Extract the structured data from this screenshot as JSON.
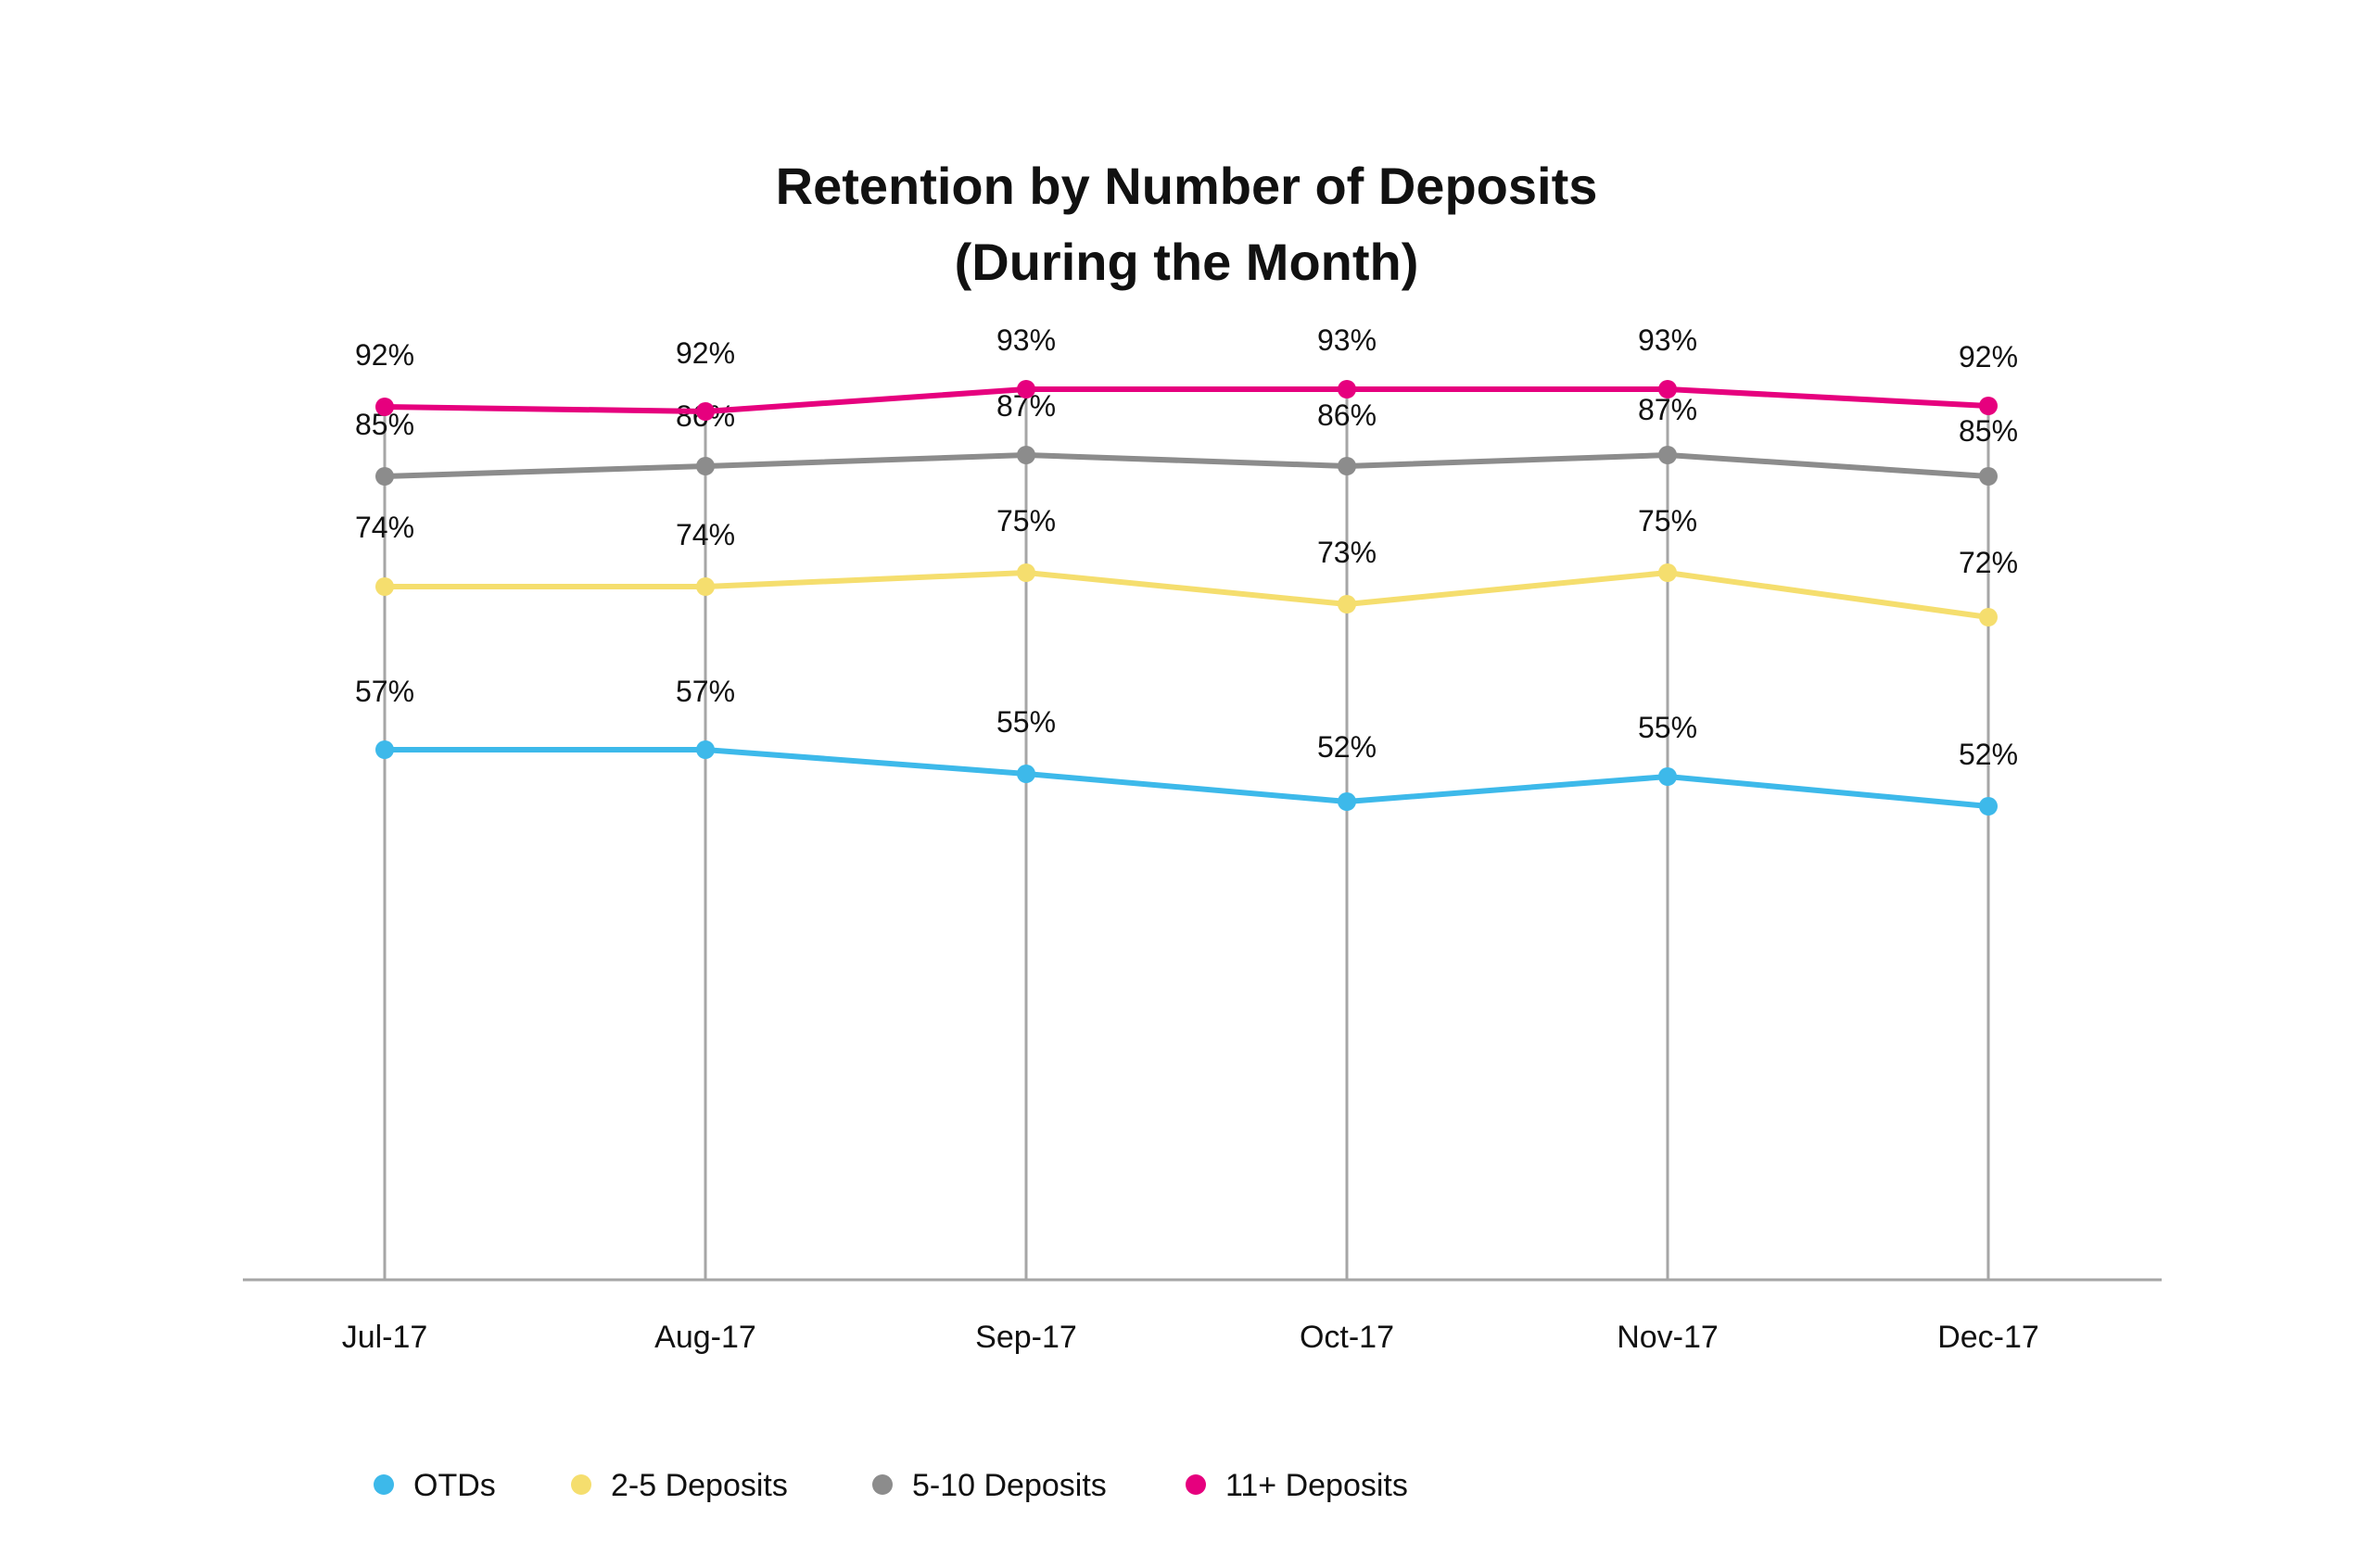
{
  "chart_data": {
    "type": "line",
    "title_line1": "Retention by Number of Deposits",
    "title_line2": "(During the Month)",
    "categories": [
      "Jul-17",
      "Aug-17",
      "Sep-17",
      "Oct-17",
      "Nov-17",
      "Dec-17"
    ],
    "ylim": [
      0,
      100
    ],
    "grid": "vertical",
    "legend_position": "bottom-left",
    "series": [
      {
        "name": "OTDs",
        "color": "#3DB9EA",
        "values": [
          57,
          57,
          55,
          52,
          55,
          52
        ],
        "plot_values": [
          57.2,
          57.2,
          54.6,
          51.6,
          54.3,
          51.1
        ],
        "labels": [
          "57%",
          "57%",
          "55%",
          "52%",
          "55%",
          "52%"
        ]
      },
      {
        "name": "2-5 Deposits",
        "color": "#F5DE6E",
        "values": [
          74,
          74,
          75,
          73,
          75,
          72
        ],
        "plot_values": [
          74.8,
          74.8,
          76.3,
          72.9,
          76.3,
          71.5
        ],
        "labels": [
          "74%",
          "74%",
          "75%",
          "73%",
          "75%",
          "72%"
        ]
      },
      {
        "name": "5-10 Deposits",
        "color": "#8C8C8C",
        "values": [
          85,
          86,
          87,
          86,
          87,
          85
        ],
        "plot_values": [
          86.7,
          87.8,
          89.0,
          87.8,
          89.0,
          86.7
        ],
        "labels": [
          "85%",
          "86%",
          "87%",
          "86%",
          "87%",
          "85%"
        ]
      },
      {
        "name": "11+ Deposits",
        "color": "#E6007E",
        "values": [
          92,
          92,
          93,
          93,
          93,
          92
        ],
        "plot_values": [
          94.2,
          93.7,
          96.1,
          96.1,
          96.1,
          94.3
        ],
        "labels": [
          "92%",
          "92%",
          "93%",
          "93%",
          "93%",
          "92%"
        ]
      }
    ]
  }
}
